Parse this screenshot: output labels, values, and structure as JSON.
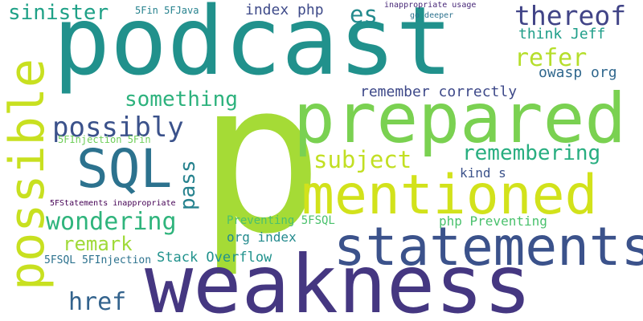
{
  "background": "#ffffff",
  "words": [
    {
      "id": "podcast",
      "text": "podcast",
      "color": "#21918c"
    },
    {
      "id": "p",
      "text": "p",
      "color": "#a5db36"
    },
    {
      "id": "weakness",
      "text": "weakness",
      "color": "#453781"
    },
    {
      "id": "prepared",
      "text": "prepared",
      "color": "#7ad151"
    },
    {
      "id": "statements",
      "text": "statements",
      "color": "#3b528b"
    },
    {
      "id": "mentioned",
      "text": "mentioned",
      "color": "#d2e21b"
    },
    {
      "id": "possible",
      "text": "possible",
      "color": "#c8e020"
    },
    {
      "id": "sql",
      "text": "SQL",
      "color": "#2c728e"
    },
    {
      "id": "thereof",
      "text": "thereof",
      "color": "#414487"
    },
    {
      "id": "possibly",
      "text": "possibly",
      "color": "#3b528b"
    },
    {
      "id": "wondering",
      "text": "wondering",
      "color": "#2fb47c"
    },
    {
      "id": "refer",
      "text": "refer",
      "color": "#b5de2b"
    },
    {
      "id": "es",
      "text": "es",
      "color": "#238a8d"
    },
    {
      "id": "sinister",
      "text": "sinister",
      "color": "#1fa187"
    },
    {
      "id": "href",
      "text": "href",
      "color": "#33638d"
    },
    {
      "id": "remark",
      "text": "remark",
      "color": "#a0da39"
    },
    {
      "id": "something",
      "text": "something",
      "color": "#2db27d"
    },
    {
      "id": "remembering",
      "text": "remembering",
      "color": "#28ae80"
    },
    {
      "id": "subject",
      "text": "subject",
      "color": "#c2df23"
    },
    {
      "id": "pass",
      "text": "pass",
      "color": "#26828e"
    },
    {
      "id": "index-php",
      "text": "index php",
      "color": "#3e4a89"
    },
    {
      "id": "think-jeff",
      "text": "think Jeff",
      "color": "#1f9e89"
    },
    {
      "id": "owasp-org",
      "text": "owasp org",
      "color": "#31688e"
    },
    {
      "id": "remember-correctly",
      "text": "remember correctly",
      "color": "#3e4989"
    },
    {
      "id": "stack-overflow",
      "text": "Stack Overflow",
      "color": "#20928c"
    },
    {
      "id": "org-index",
      "text": "org index",
      "color": "#238a8d"
    },
    {
      "id": "php-preventing",
      "text": "php Preventing",
      "color": "#4ac16d"
    },
    {
      "id": "preventing-5fsql",
      "text": "Preventing 5FSQL",
      "color": "#4ac16d"
    },
    {
      "id": "kind-s",
      "text": "kind s",
      "color": "#3b528b"
    },
    {
      "id": "5fsql-5finjection",
      "text": "5FSQL 5FInjection",
      "color": "#2c728e"
    },
    {
      "id": "5finjection-5fin",
      "text": "5FInjection 5Fin",
      "color": "#6ece58"
    },
    {
      "id": "5fin-5fjava",
      "text": "5Fin 5FJava",
      "color": "#26828e"
    },
    {
      "id": "5fstatements-inappropriate",
      "text": "5FStatements inappropriate",
      "color": "#440154"
    },
    {
      "id": "inappropriate-usage",
      "text": "inappropriate usage",
      "color": "#482878"
    },
    {
      "id": "go-deeper",
      "text": "go deeper",
      "color": "#2c728e"
    }
  ]
}
